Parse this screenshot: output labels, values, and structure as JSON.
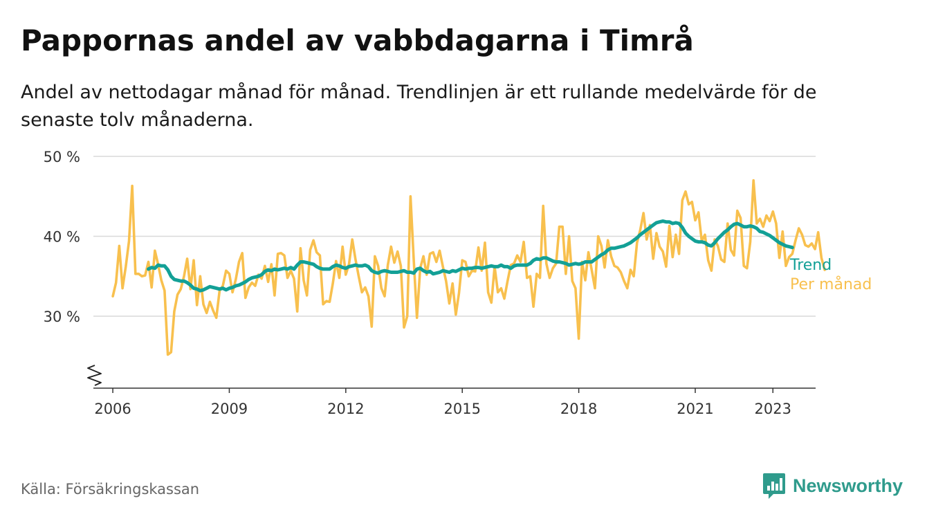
{
  "title": "Pappornas andel av vabbdagarna i Timrå",
  "subtitle": "Andel av nettodagar månad för månad. Trendlinjen är ett rullande medelvärde för de senaste tolv månaderna.",
  "source": "Källa: Försäkringskassan",
  "brand": {
    "name": "Newsworthy",
    "icon": "newsworthy-logo-icon",
    "color": "#2f9b8c"
  },
  "chart_data": {
    "type": "line",
    "title": "Pappornas andel av vabbdagarna i Timrå",
    "ylabel": "",
    "xlabel": "",
    "ylim": [
      21,
      50
    ],
    "xlim": [
      2005.5,
      2024.1
    ],
    "y_ticks": [
      30,
      40,
      50
    ],
    "y_tick_labels": [
      "30 %",
      "40 %",
      "50 %"
    ],
    "x_ticks": [
      2006,
      2009,
      2012,
      2015,
      2018,
      2021,
      2023
    ],
    "x_tick_labels": [
      "2006",
      "2009",
      "2012",
      "2015",
      "2018",
      "2021",
      "2023"
    ],
    "y_axis_break": true,
    "grid": true,
    "legend": "labels at line ends (right)",
    "series": [
      {
        "name": "Per månad",
        "color": "#f8c04e",
        "x_start": "2006-01",
        "interval": "month",
        "values": [
          32.5,
          34.2,
          38.8,
          33.5,
          36.2,
          39.4,
          46.3,
          35.3,
          35.3,
          35.0,
          35.1,
          36.8,
          33.6,
          38.2,
          36.5,
          34.5,
          33.2,
          25.2,
          25.5,
          30.6,
          32.7,
          33.4,
          35.0,
          37.2,
          33.4,
          37.0,
          31.4,
          35.0,
          31.5,
          30.4,
          31.8,
          30.7,
          29.8,
          33.2,
          33.8,
          35.7,
          35.3,
          33.0,
          34.6,
          36.8,
          37.9,
          32.3,
          33.6,
          34.2,
          33.8,
          35.2,
          34.7,
          36.3,
          34.3,
          36.5,
          32.6,
          37.8,
          37.9,
          37.6,
          34.8,
          35.7,
          34.7,
          30.6,
          38.5,
          34.5,
          32.6,
          38.3,
          39.5,
          38.0,
          37.6,
          31.5,
          31.9,
          31.8,
          34.1,
          36.9,
          34.8,
          38.7,
          35.2,
          36.5,
          39.6,
          37.1,
          35.0,
          33.0,
          33.6,
          32.5,
          28.7,
          37.5,
          36.3,
          33.5,
          32.5,
          36.4,
          38.7,
          36.7,
          38.1,
          36.3,
          28.6,
          30.0,
          45.0,
          37.0,
          29.8,
          36.0,
          37.5,
          35.2,
          37.8,
          38.0,
          36.8,
          38.2,
          36.2,
          34.4,
          31.6,
          34.1,
          30.2,
          32.9,
          37.0,
          36.8,
          35.0,
          35.7,
          35.6,
          38.6,
          35.7,
          39.2,
          33.0,
          31.7,
          36.2,
          33.0,
          33.5,
          32.2,
          34.4,
          36.4,
          36.6,
          37.6,
          36.8,
          39.3,
          34.8,
          35.0,
          31.2,
          35.3,
          34.8,
          43.8,
          36.6,
          34.8,
          36.0,
          36.6,
          41.2,
          41.2,
          35.3,
          40.0,
          34.4,
          33.5,
          27.2,
          36.8,
          34.5,
          38.0,
          35.8,
          33.5,
          40.0,
          38.8,
          36.1,
          39.5,
          37.5,
          36.3,
          36.1,
          35.5,
          34.4,
          33.5,
          35.8,
          35.0,
          39.2,
          40.8,
          42.9,
          39.6,
          41.4,
          37.2,
          40.4,
          38.7,
          38.1,
          36.2,
          41.3,
          37.4,
          40.2,
          37.8,
          44.5,
          45.6,
          44.0,
          44.3,
          42.0,
          43.0,
          39.4,
          40.2,
          37.0,
          35.7,
          39.6,
          38.8,
          37.1,
          36.8,
          41.6,
          38.3,
          37.6,
          43.2,
          42.3,
          36.3,
          36.0,
          39.3,
          47.0,
          41.6,
          42.2,
          41.2,
          42.6,
          41.9,
          43.1,
          41.6,
          37.3,
          40.6,
          36.3,
          37.4,
          37.8,
          39.5,
          41.0,
          40.2,
          38.9,
          38.7,
          39.1,
          38.4,
          40.5,
          37.3,
          35.8
        ]
      },
      {
        "name": "Trend",
        "color": "#13a096",
        "x_start": "2006-12",
        "interval": "month",
        "values": [
          35.9,
          36.1,
          36.0,
          36.4,
          36.3,
          36.3,
          35.8,
          35.0,
          34.6,
          34.5,
          34.4,
          34.4,
          34.2,
          33.9,
          33.5,
          33.4,
          33.2,
          33.3,
          33.5,
          33.7,
          33.6,
          33.5,
          33.4,
          33.5,
          33.3,
          33.5,
          33.6,
          33.8,
          33.9,
          34.1,
          34.3,
          34.6,
          34.8,
          34.9,
          35.0,
          35.2,
          35.6,
          35.8,
          35.7,
          35.9,
          35.8,
          35.9,
          36.0,
          35.9,
          36.1,
          35.9,
          36.4,
          36.8,
          36.8,
          36.7,
          36.6,
          36.5,
          36.2,
          36.0,
          35.9,
          35.9,
          35.9,
          36.2,
          36.4,
          36.3,
          36.1,
          36.0,
          36.2,
          36.3,
          36.4,
          36.3,
          36.3,
          36.4,
          36.2,
          35.7,
          35.5,
          35.4,
          35.6,
          35.7,
          35.6,
          35.5,
          35.5,
          35.5,
          35.6,
          35.7,
          35.5,
          35.5,
          35.4,
          35.9,
          36.0,
          35.7,
          35.5,
          35.6,
          35.3,
          35.4,
          35.5,
          35.7,
          35.6,
          35.5,
          35.7,
          35.6,
          35.8,
          36.0,
          35.9,
          36.0,
          36.0,
          36.1,
          36.1,
          36.0,
          36.1,
          36.2,
          36.3,
          36.2,
          36.2,
          36.4,
          36.2,
          36.2,
          36.0,
          36.3,
          36.4,
          36.4,
          36.4,
          36.4,
          36.6,
          37.0,
          37.2,
          37.1,
          37.3,
          37.3,
          37.1,
          36.9,
          36.8,
          36.8,
          36.7,
          36.6,
          36.4,
          36.5,
          36.6,
          36.5,
          36.6,
          36.8,
          36.8,
          36.8,
          37.1,
          37.4,
          37.7,
          37.9,
          38.3,
          38.5,
          38.5,
          38.6,
          38.7,
          38.8,
          39.0,
          39.2,
          39.5,
          39.8,
          40.2,
          40.5,
          40.8,
          41.1,
          41.4,
          41.7,
          41.8,
          41.9,
          41.8,
          41.8,
          41.6,
          41.7,
          41.6,
          41.1,
          40.4,
          40.0,
          39.7,
          39.4,
          39.3,
          39.3,
          39.2,
          38.9,
          38.8,
          39.2,
          39.7,
          40.1,
          40.5,
          40.8,
          41.2,
          41.5,
          41.6,
          41.4,
          41.2,
          41.2,
          41.3,
          41.2,
          41.0,
          40.6,
          40.5,
          40.3,
          40.1,
          39.8,
          39.5,
          39.2,
          39.0,
          38.8,
          38.7,
          38.6
        ]
      }
    ]
  }
}
